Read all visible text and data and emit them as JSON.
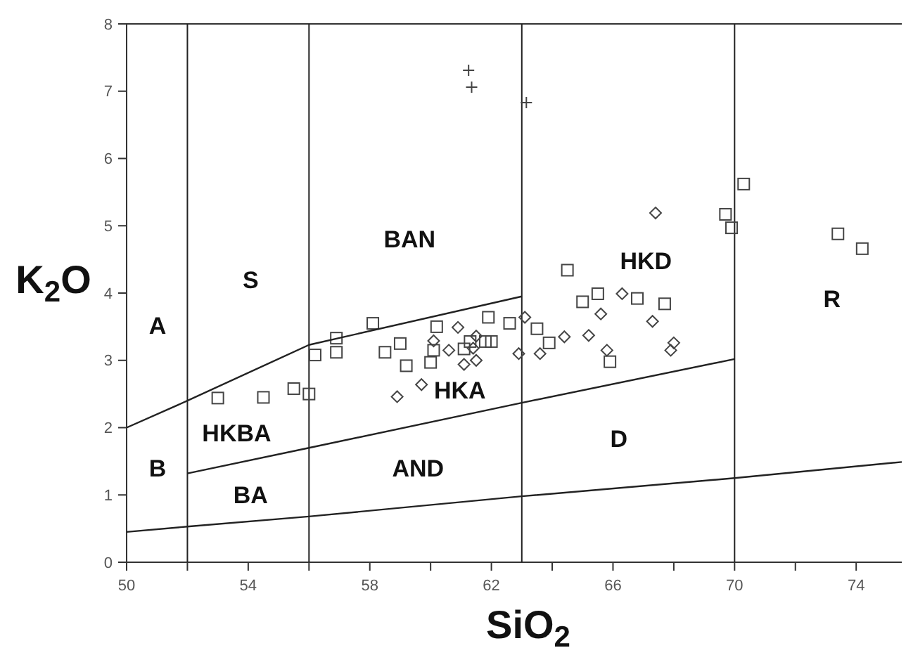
{
  "chart_data": {
    "type": "scatter",
    "xlabel": "SiO$_{2}$",
    "ylabel": "K$_{2}$O",
    "xlim": [
      50,
      75.5
    ],
    "ylim": [
      0,
      8
    ],
    "xticks": [
      50,
      {
        "value": 52,
        "label": null
      },
      54,
      {
        "value": 56,
        "label": null
      },
      58,
      {
        "value": 60,
        "label": null
      },
      62,
      {
        "value": 64,
        "label": null
      },
      66,
      {
        "value": 68,
        "label": null
      },
      70,
      {
        "value": 72,
        "label": null
      },
      74
    ],
    "yticks": [
      0,
      1,
      2,
      3,
      4,
      5,
      6,
      7,
      8
    ],
    "grid": false,
    "series": [
      {
        "marker": "square",
        "color": "#444444",
        "x": [
          53.0,
          54.5,
          55.5,
          56.0,
          56.2,
          56.9,
          56.9,
          58.1,
          58.5,
          59.0,
          59.2,
          60.0,
          60.1,
          60.2,
          61.1,
          61.3,
          61.9,
          61.8,
          62.0,
          62.6,
          63.5,
          63.9,
          64.5,
          65.0,
          65.5,
          65.9,
          66.8,
          67.7,
          69.7,
          69.9,
          70.3,
          73.4,
          74.2
        ],
        "values": [
          2.44,
          2.45,
          2.58,
          2.5,
          3.08,
          3.12,
          3.33,
          3.55,
          3.12,
          3.25,
          2.92,
          2.97,
          3.15,
          3.5,
          3.17,
          3.28,
          3.64,
          3.28,
          3.28,
          3.55,
          3.47,
          3.26,
          4.34,
          3.87,
          3.99,
          2.98,
          3.92,
          3.84,
          5.17,
          4.97,
          5.62,
          4.88,
          4.66
        ]
      },
      {
        "marker": "diamond",
        "color": "#444444",
        "x": [
          58.9,
          59.7,
          60.1,
          60.6,
          60.9,
          61.1,
          61.4,
          61.5,
          61.5,
          62.9,
          63.1,
          63.6,
          64.4,
          65.2,
          65.6,
          65.8,
          66.3,
          67.3,
          67.4,
          67.9,
          68.0
        ],
        "values": [
          2.46,
          2.64,
          3.29,
          3.15,
          3.49,
          2.94,
          3.18,
          3.0,
          3.36,
          3.1,
          3.64,
          3.1,
          3.35,
          3.37,
          3.69,
          3.15,
          3.99,
          3.58,
          5.19,
          3.15,
          3.26
        ]
      },
      {
        "marker": "cross",
        "color": "#444444",
        "x": [
          61.25,
          61.35,
          63.15
        ],
        "values": [
          7.31,
          7.06,
          6.83
        ]
      },
      {
        "type": "line",
        "marker": "none",
        "line_style": "solid",
        "color": "#222222",
        "x": [
          50,
          52,
          56,
          63,
          70,
          75.5
        ],
        "values": [
          0.45,
          0.53,
          0.68,
          0.98,
          1.25,
          1.49
        ]
      },
      {
        "type": "line",
        "marker": "none",
        "line_style": "solid",
        "color": "#222222",
        "x": [
          52,
          56,
          63,
          70
        ],
        "values": [
          1.32,
          1.7,
          2.37,
          3.02
        ]
      },
      {
        "type": "line",
        "marker": "none",
        "line_style": "solid",
        "color": "#222222",
        "x": [
          50,
          52,
          56,
          63
        ],
        "values": [
          2.0,
          2.4,
          3.23,
          3.95
        ]
      }
    ],
    "ref_lines": [
      {
        "axis": "x",
        "value": 52,
        "color": "#222222"
      },
      {
        "axis": "x",
        "value": 56,
        "color": "#222222"
      },
      {
        "axis": "x",
        "value": 63,
        "color": "#222222"
      },
      {
        "axis": "x",
        "value": 70,
        "color": "#222222"
      }
    ],
    "annotations": [
      "A",
      "S",
      "BAN",
      "HKD",
      "R",
      "HKBA",
      "HKA",
      "B",
      "BA",
      "AND",
      "D"
    ]
  }
}
